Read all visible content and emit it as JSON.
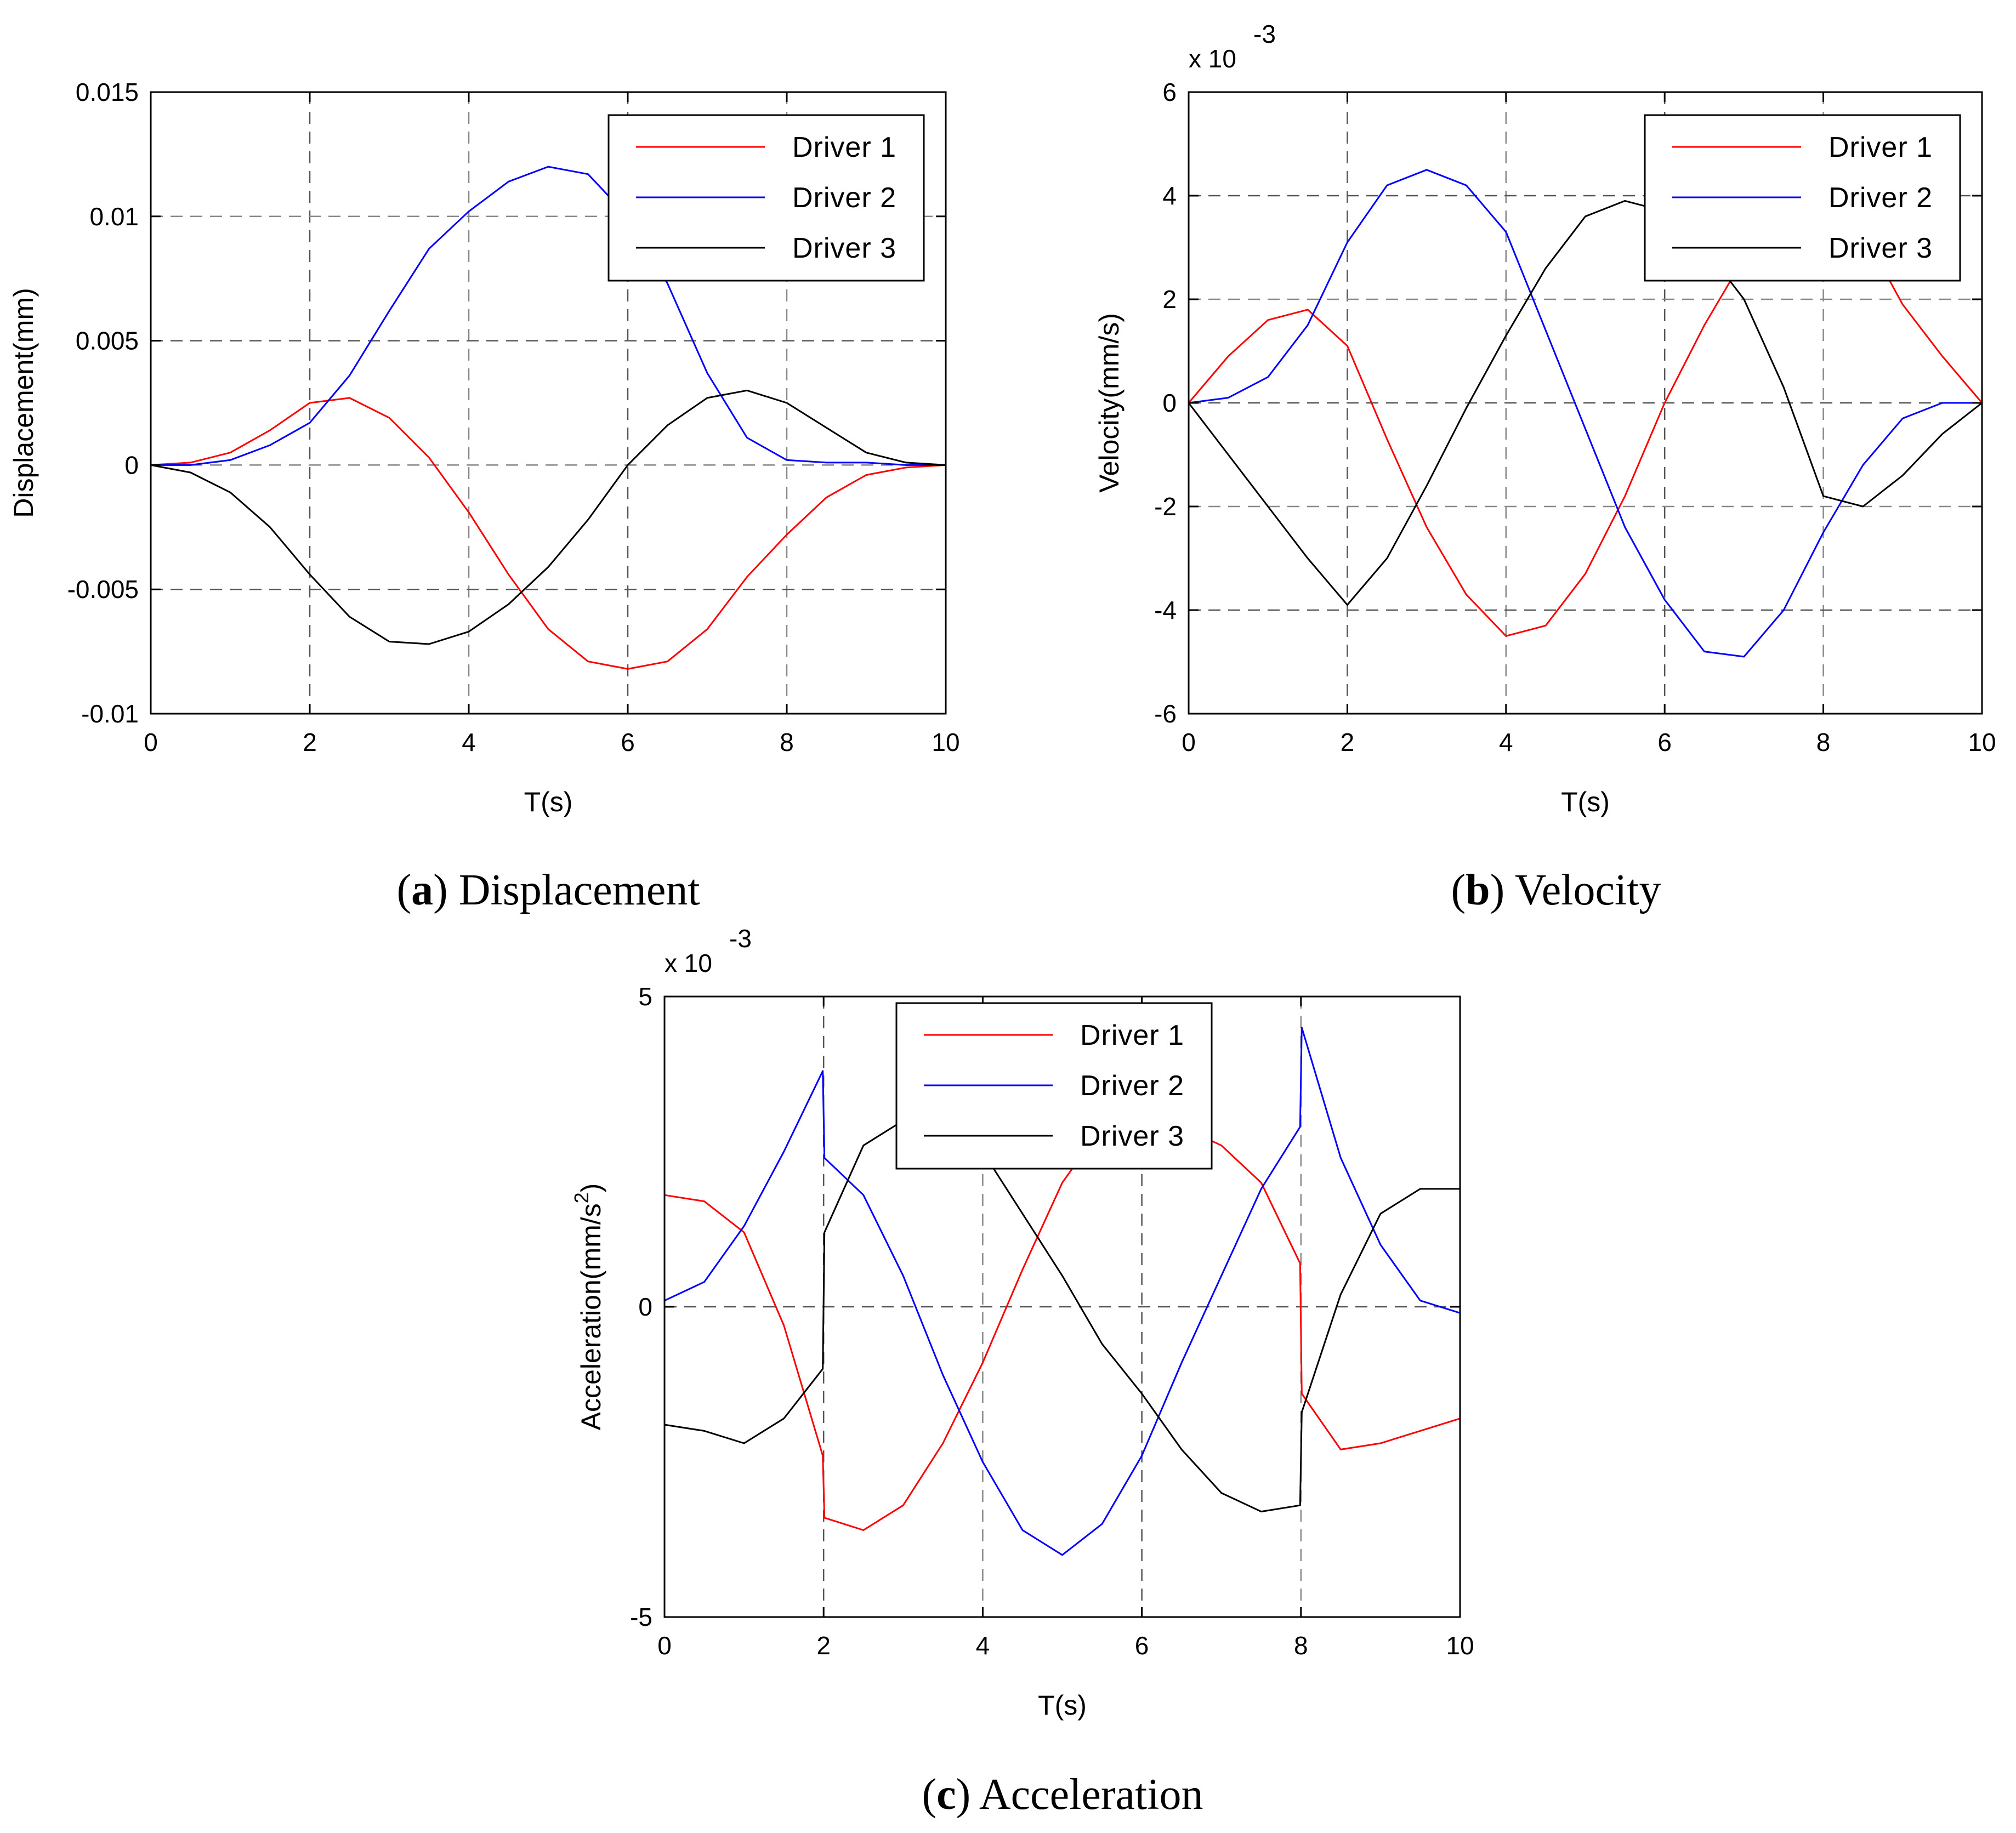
{
  "chart_data": [
    {
      "type": "line",
      "panel": "a",
      "caption_letter": "a",
      "caption_text": "Displacement",
      "xlabel": "T(s)",
      "ylabel": "Displacement(mm)",
      "xlim": [
        0,
        10
      ],
      "ylim": [
        -0.01,
        0.015
      ],
      "xticks": [
        0,
        2,
        4,
        6,
        8,
        10
      ],
      "xtick_labels": [
        "0",
        "2",
        "4",
        "6",
        "8",
        "10"
      ],
      "yticks": [
        -0.01,
        -0.005,
        0,
        0.005,
        0.01,
        0.015
      ],
      "ytick_labels": [
        "-0.01",
        "-0.005",
        "0",
        "0.005",
        "0.01",
        "0.015"
      ],
      "exponent_label": "",
      "grid": true,
      "legend_position": "top-right",
      "x": [
        0,
        0.5,
        1,
        1.5,
        2,
        2.5,
        3,
        3.5,
        4,
        4.5,
        5,
        5.5,
        6,
        6.5,
        7,
        7.5,
        8,
        8.5,
        9,
        9.5,
        10
      ],
      "series": [
        {
          "name": "Driver 1",
          "color": "#ff0000",
          "values": [
            0,
            0.0001,
            0.0005,
            0.0014,
            0.0025,
            0.0027,
            0.0019,
            0.0003,
            -0.0019,
            -0.0044,
            -0.0066,
            -0.0079,
            -0.0082,
            -0.0079,
            -0.0066,
            -0.0045,
            -0.0028,
            -0.0013,
            -0.0004,
            -0.0001,
            0
          ]
        },
        {
          "name": "Driver 2",
          "color": "#0000ff",
          "values": [
            0,
            0,
            0.0002,
            0.0008,
            0.0017,
            0.0036,
            0.0062,
            0.0087,
            0.0102,
            0.0114,
            0.012,
            0.0117,
            0.01,
            0.0073,
            0.0037,
            0.0011,
            0.0002,
            0.0001,
            0.0001,
            0,
            0
          ]
        },
        {
          "name": "Driver 3",
          "color": "#000000",
          "values": [
            0,
            -0.0003,
            -0.0011,
            -0.0025,
            -0.0044,
            -0.0061,
            -0.0071,
            -0.0072,
            -0.0067,
            -0.0056,
            -0.0041,
            -0.0022,
            0,
            0.0016,
            0.0027,
            0.003,
            0.0025,
            0.0015,
            0.0005,
            0.0001,
            0
          ]
        }
      ]
    },
    {
      "type": "line",
      "panel": "b",
      "caption_letter": "b",
      "caption_text": "Velocity",
      "xlabel": "T(s)",
      "ylabel": "Velocity(mm/s)",
      "xlim": [
        0,
        10
      ],
      "ylim": [
        -6,
        6
      ],
      "xticks": [
        0,
        2,
        4,
        6,
        8,
        10
      ],
      "xtick_labels": [
        "0",
        "2",
        "4",
        "6",
        "8",
        "10"
      ],
      "yticks": [
        -6,
        -4,
        -2,
        0,
        2,
        4,
        6
      ],
      "ytick_labels": [
        "-6",
        "-4",
        "-2",
        "0",
        "2",
        "4",
        "6"
      ],
      "exponent_label": "x 10",
      "exponent_power": "-3",
      "grid": true,
      "legend_position": "top-right",
      "x": [
        0,
        0.5,
        1,
        1.5,
        2,
        2.5,
        3,
        3.5,
        4,
        4.5,
        5,
        5.5,
        6,
        6.5,
        7,
        7.5,
        8,
        8.5,
        9,
        9.5,
        10
      ],
      "series": [
        {
          "name": "Driver 1",
          "color": "#ff0000",
          "values": [
            0,
            0.9,
            1.6,
            1.8,
            1.1,
            -0.7,
            -2.4,
            -3.7,
            -4.5,
            -4.3,
            -3.3,
            -1.8,
            0,
            1.5,
            2.8,
            3.9,
            4.3,
            3.3,
            1.9,
            0.9,
            0
          ]
        },
        {
          "name": "Driver 2",
          "color": "#0000ff",
          "values": [
            0,
            0.1,
            0.5,
            1.5,
            3.1,
            4.2,
            4.5,
            4.2,
            3.3,
            1.4,
            -0.5,
            -2.4,
            -3.8,
            -4.8,
            -4.9,
            -4.0,
            -2.5,
            -1.2,
            -0.3,
            0,
            0
          ]
        },
        {
          "name": "Driver 3",
          "color": "#000000",
          "values": [
            0,
            -1.0,
            -2.0,
            -3.0,
            -3.9,
            -3.0,
            -1.6,
            -0.1,
            1.3,
            2.6,
            3.6,
            3.9,
            3.7,
            3.0,
            2.0,
            0.3,
            -1.8,
            -2.0,
            -1.4,
            -0.6,
            0
          ]
        }
      ]
    },
    {
      "type": "line",
      "panel": "c",
      "caption_letter": "c",
      "caption_text": "Acceleration",
      "xlabel": "T(s)",
      "ylabel": "Acceleration(mm/s",
      "ylabel_sup": "2",
      "ylabel_end": ")",
      "xlim": [
        0,
        10
      ],
      "ylim": [
        -5,
        5
      ],
      "xticks": [
        0,
        2,
        4,
        6,
        8,
        10
      ],
      "xtick_labels": [
        "0",
        "2",
        "4",
        "6",
        "8",
        "10"
      ],
      "yticks": [
        -5,
        0,
        5
      ],
      "ytick_labels": [
        "-5",
        "0",
        "5"
      ],
      "exponent_label": "x 10",
      "exponent_power": "-3",
      "grid": true,
      "legend_position": "top-center",
      "x": [
        0,
        0.5,
        1,
        1.5,
        1.99,
        2.01,
        2.5,
        3,
        3.5,
        4,
        4.5,
        5,
        5.5,
        6,
        6.5,
        7,
        7.5,
        7.99,
        8.01,
        8.5,
        9,
        9.5,
        10
      ],
      "series": [
        {
          "name": "Driver 1",
          "color": "#ff0000",
          "values": [
            1.8,
            1.7,
            1.2,
            -0.3,
            -2.4,
            -3.4,
            -3.6,
            -3.2,
            -2.2,
            -0.9,
            0.6,
            2.0,
            2.9,
            3.1,
            2.9,
            2.6,
            2.0,
            0.7,
            -1.4,
            -2.3,
            -2.2,
            -2.0,
            -1.8
          ]
        },
        {
          "name": "Driver 2",
          "color": "#0000ff",
          "values": [
            0.1,
            0.4,
            1.3,
            2.5,
            3.8,
            2.4,
            1.8,
            0.5,
            -1.1,
            -2.5,
            -3.6,
            -4.0,
            -3.5,
            -2.4,
            -0.9,
            0.5,
            1.9,
            2.9,
            4.5,
            2.4,
            1.0,
            0.1,
            -0.1
          ]
        },
        {
          "name": "Driver 3",
          "color": "#000000",
          "values": [
            -1.9,
            -2.0,
            -2.2,
            -1.8,
            -1.0,
            1.2,
            2.6,
            3.0,
            3.0,
            2.5,
            1.5,
            0.5,
            -0.6,
            -1.4,
            -2.3,
            -3.0,
            -3.3,
            -3.2,
            -1.7,
            0.2,
            1.5,
            1.9,
            1.9
          ]
        }
      ]
    }
  ]
}
